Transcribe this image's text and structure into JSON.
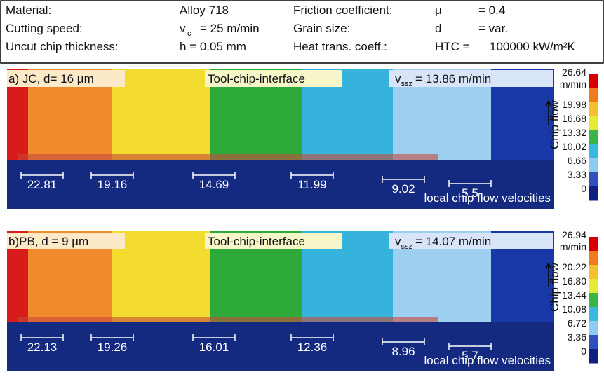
{
  "header": {
    "rows": [
      [
        "Material:",
        "Alloy 718",
        "Friction coefficient:",
        "μ",
        "=  0.4"
      ],
      [
        "Cutting speed:",
        "v",
        "c",
        "=  25 m/min",
        "Grain size:",
        "d",
        "=  var."
      ],
      [
        "Uncut chip thickness:",
        "h  =  0.05 mm",
        "Heat trans. coeff.:",
        "HTC =",
        "100000 kW/m²K"
      ]
    ]
  },
  "panels": [
    {
      "label": "a) JC, d= 16 µm",
      "interface": "Tool-chip-interface",
      "velocity_symbol": "v",
      "velocity_sub": "ssz",
      "velocity_value": "= 13.86 m/min",
      "measurements": [
        "22.81",
        "19.16",
        "14.69",
        "11.99",
        "9.02",
        "5.5"
      ],
      "footer": "local chip flow velocities",
      "colorbar": {
        "unit": "m/min",
        "ticks": [
          "26.64",
          "19.98",
          "16.68",
          "13.32",
          "10.02",
          "6.66",
          "3.33",
          "0"
        ],
        "direction": "Chip flow"
      }
    },
    {
      "label": "b)PB, d = 9 µm",
      "interface": "Tool-chip-interface",
      "velocity_symbol": "v",
      "velocity_sub": "ssz",
      "velocity_value": "= 14.07 m/min",
      "measurements": [
        "22.13",
        "19.26",
        "16.01",
        "12.36",
        "8.96",
        "5.7"
      ],
      "footer": "local chip flow velocities",
      "colorbar": {
        "unit": "m/min",
        "ticks": [
          "26.94",
          "20.22",
          "16.80",
          "13.44",
          "10.08",
          "6.72",
          "3.36",
          "0"
        ],
        "direction": "Chip flow"
      }
    }
  ]
}
